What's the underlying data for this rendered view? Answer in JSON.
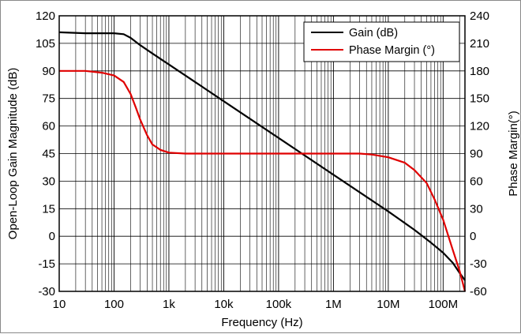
{
  "chart_data": {
    "type": "line",
    "xlabel": "Frequency (Hz)",
    "ylabel_left": "Open-Loop Gain Magnitude (dB)",
    "ylabel_right": "Phase Margin(°)",
    "x_scale": "log",
    "xlim": [
      10,
      250000000
    ],
    "ylim_left": [
      -30,
      120
    ],
    "ylim_right": [
      -60,
      240
    ],
    "grid": true,
    "legend_position": "top-right",
    "x_ticks": [
      {
        "value": 10,
        "label": "10"
      },
      {
        "value": 100,
        "label": "100"
      },
      {
        "value": 1000,
        "label": "1k"
      },
      {
        "value": 10000,
        "label": "10k"
      },
      {
        "value": 100000,
        "label": "100k"
      },
      {
        "value": 1000000,
        "label": "1M"
      },
      {
        "value": 10000000,
        "label": "10M"
      },
      {
        "value": 100000000,
        "label": "100M"
      }
    ],
    "y_ticks_left": [
      "120",
      "105",
      "90",
      "75",
      "60",
      "45",
      "30",
      "15",
      "0",
      "-15",
      "-30"
    ],
    "y_ticks_right": [
      "240",
      "210",
      "180",
      "150",
      "120",
      "90",
      "60",
      "30",
      "0",
      "-30",
      "-60"
    ],
    "series": [
      {
        "name": "Gain (dB)",
        "axis": "left",
        "color": "#000000",
        "x": [
          10,
          30,
          60,
          100,
          150,
          200,
          300,
          500,
          1000,
          3000,
          10000,
          100000,
          1000000,
          3000000,
          10000000,
          30000000,
          60000000,
          100000000,
          150000000,
          200000000,
          250000000
        ],
        "y": [
          111,
          110.5,
          110.5,
          110.5,
          110,
          108,
          104,
          99.5,
          93.5,
          84,
          73.5,
          53.5,
          33.5,
          24,
          13.5,
          3.5,
          -3.5,
          -9,
          -14.5,
          -20,
          -24
        ]
      },
      {
        "name": "Phase Margin (°)",
        "axis": "right",
        "color": "#e00000",
        "x": [
          10,
          30,
          60,
          100,
          150,
          200,
          250,
          300,
          400,
          500,
          700,
          1000,
          2000,
          10000,
          100000,
          1000000,
          3000000,
          5000000,
          10000000,
          20000000,
          30000000,
          50000000,
          70000000,
          100000000,
          150000000,
          200000000,
          250000000
        ],
        "y": [
          180,
          180,
          178,
          175,
          168,
          155,
          140,
          127,
          110,
          100,
          94,
          91,
          90,
          90,
          90,
          90,
          90,
          89,
          86,
          80,
          72,
          58,
          40,
          18,
          -15,
          -38,
          -60
        ]
      }
    ]
  }
}
